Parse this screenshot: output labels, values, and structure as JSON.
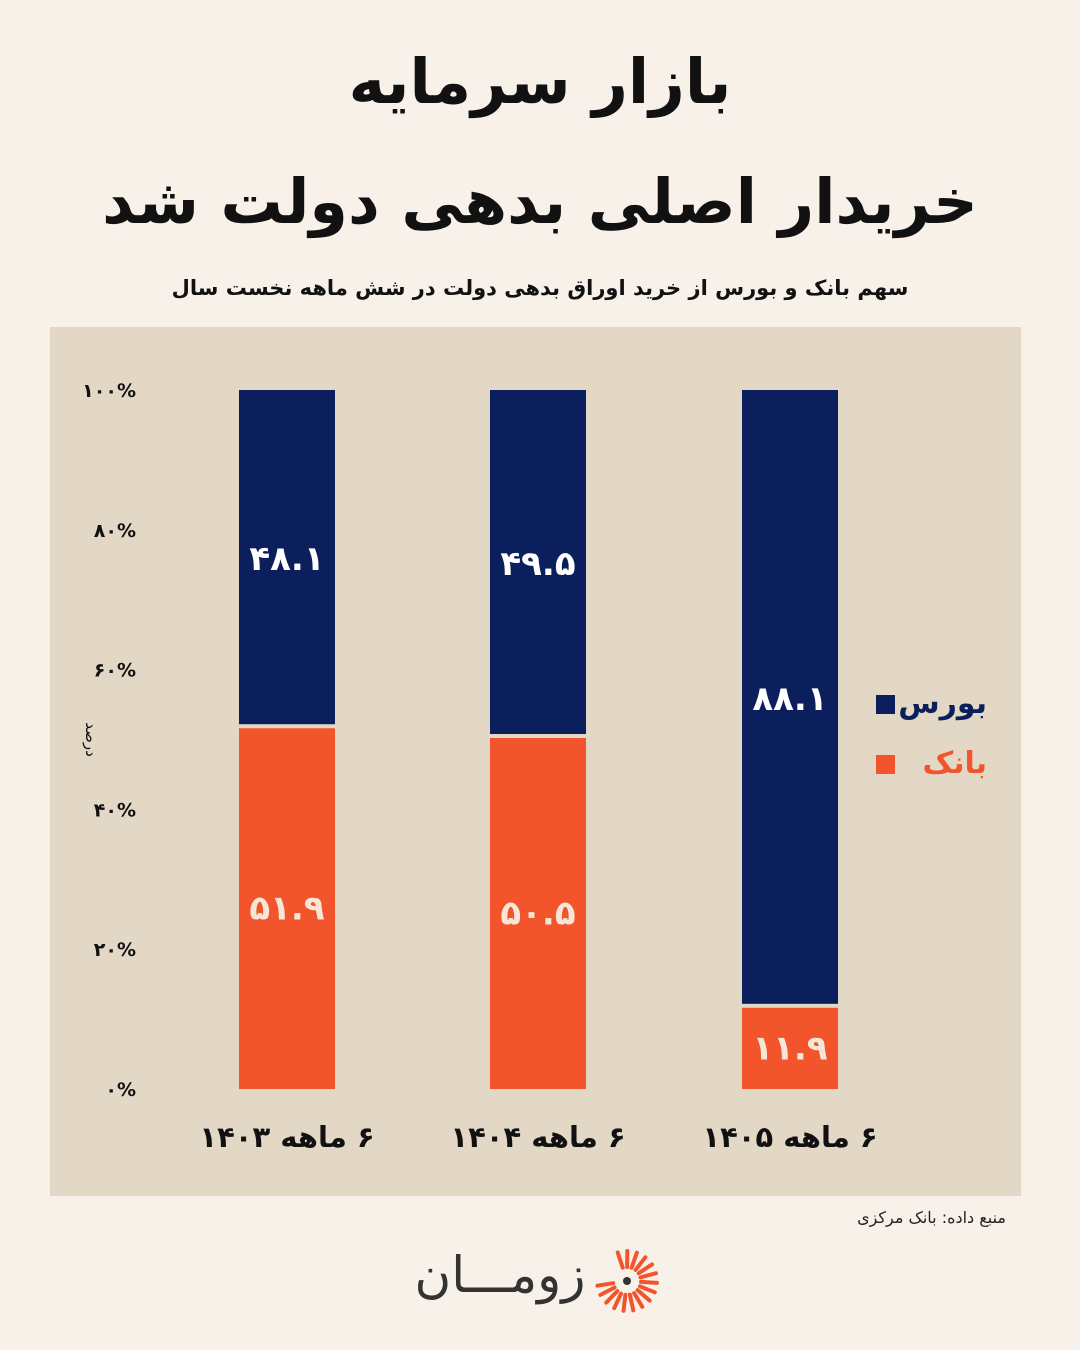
{
  "header": {
    "title_line1": "بازار سرمایه",
    "title_line2": "خریدار اصلی بدهی دولت شد",
    "subtitle": "سهم بانک و بورس از خرید اوراق بدهی دولت در شش ماهه نخست سال"
  },
  "chart_data": {
    "type": "bar",
    "stacked": true,
    "title": "",
    "ylabel": "درصد",
    "ylim": [
      0,
      100
    ],
    "yticks": [
      "۰%",
      "۲۰%",
      "۴۰%",
      "۶۰%",
      "۸۰%",
      "۱۰۰%"
    ],
    "categories": [
      "۶ ماهه ۱۴۰۳",
      "۶ ماهه ۱۴۰۴",
      "۶ ماهه ۱۴۰۵"
    ],
    "series": [
      {
        "name": "بانک",
        "color": "#f2552c",
        "values": [
          51.9,
          50.5,
          11.9
        ],
        "labels": [
          "۵۱.۹",
          "۵۰.۵",
          "۱۱.۹"
        ]
      },
      {
        "name": "بورس",
        "color": "#0b1f5c",
        "values": [
          48.1,
          49.5,
          88.1
        ],
        "labels": [
          "۴۸.۱",
          "۴۹.۵",
          "۸۸.۱"
        ]
      }
    ],
    "legend": "right",
    "grid": false
  },
  "footer": {
    "source": "منبع داده: بانک مرکزی",
    "logo_text": "زومـــان"
  },
  "colors": {
    "background": "#f7f1ea",
    "panel": "#e3d8c6",
    "accent": "#f2552c",
    "navy": "#0b1f5c"
  }
}
